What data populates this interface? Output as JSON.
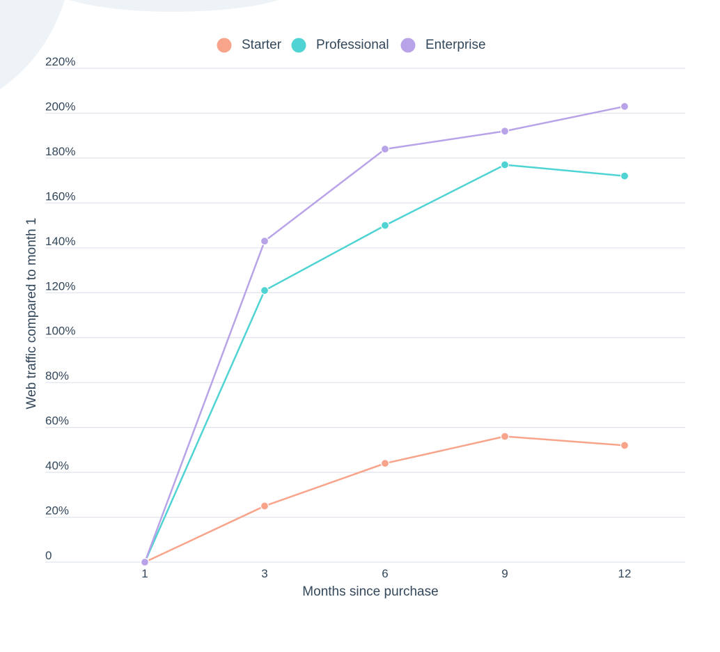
{
  "chart_data": {
    "type": "line",
    "title": "",
    "xlabel": "Months since purchase",
    "ylabel": "Web traffic compared to month 1",
    "categories": [
      "1",
      "3",
      "6",
      "9",
      "12"
    ],
    "ylim": [
      0,
      220
    ],
    "y_ticks": [
      0,
      20,
      40,
      60,
      80,
      100,
      120,
      140,
      160,
      180,
      200,
      220
    ],
    "y_tick_labels": [
      "0",
      "20%",
      "40%",
      "60%",
      "80%",
      "100%",
      "120%",
      "140%",
      "160%",
      "180%",
      "200%",
      "220%"
    ],
    "grid": "horizontal",
    "legend_position": "top-center",
    "series": [
      {
        "name": "Starter",
        "color": "#f8a48b",
        "values": [
          0,
          25,
          44,
          56,
          52
        ]
      },
      {
        "name": "Professional",
        "color": "#4fd3d3",
        "values": [
          0,
          121,
          150,
          177,
          172
        ]
      },
      {
        "name": "Enterprise",
        "color": "#b9a3e8",
        "values": [
          0,
          143,
          184,
          192,
          203
        ]
      }
    ]
  },
  "colors": {
    "grid": "#dfe3eb",
    "text": "#33475b",
    "background_blob": "#eef3f8"
  }
}
